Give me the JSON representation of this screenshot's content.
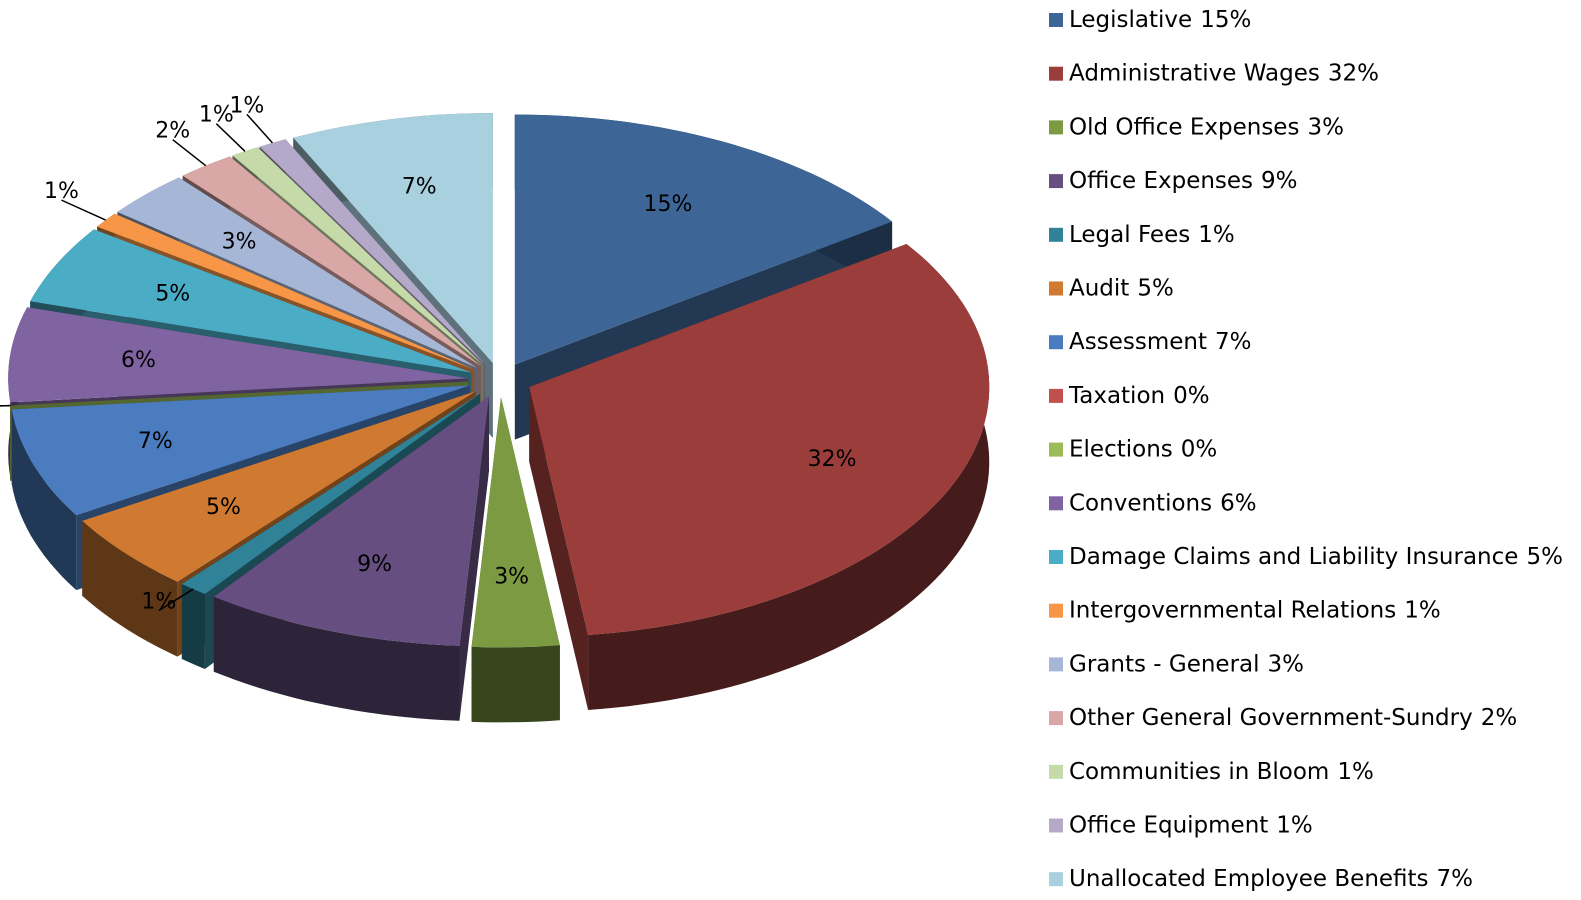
{
  "chart_data": {
    "type": "pie3d",
    "categories": [
      "Legislative",
      "Administrative Wages",
      "Old Office Expenses",
      "Office Expenses",
      "Legal Fees",
      "Audit",
      "Assessment",
      "Taxation",
      "Elections",
      "Conventions",
      "Damage Claims and Liability Insurance",
      "Intergovernmental Relations",
      "Grants - General",
      "Other General Government-Sundry",
      "Communities in Bloom",
      "Office Equipment",
      "Unallocated Employee Benefits"
    ],
    "values": [
      15,
      32,
      3,
      9,
      1,
      5,
      7,
      0,
      0,
      6,
      5,
      1,
      3,
      2,
      1,
      1,
      7
    ],
    "value_labels": [
      "15%",
      "32%",
      "3%",
      "9%",
      "1%",
      "5%",
      "7%",
      "0%",
      "0%",
      "6%",
      "5%",
      "1%",
      "3%",
      "2%",
      "1%",
      "1%",
      "7%"
    ],
    "colors": [
      "#3d6697",
      "#9b3d3b",
      "#7b9a41",
      "#664f80",
      "#2f8297",
      "#cf7a30",
      "#4a7cbf",
      "#c0504d",
      "#9bbb59",
      "#8064a2",
      "#4bacc6",
      "#f79646",
      "#a6b6d7",
      "#d9a7a5",
      "#c5d9a9",
      "#b5a9c9",
      "#a9d0de"
    ],
    "legend": "right"
  }
}
